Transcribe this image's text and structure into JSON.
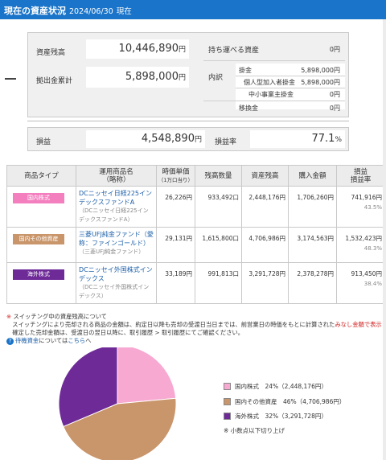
{
  "header": {
    "title": "現在の資産状況",
    "date": "2024/06/30",
    "now": "現在"
  },
  "summary": {
    "asset_label": "資産残高",
    "asset_value": "10,446,890",
    "yen": "円",
    "contrib_label": "拠出金累計",
    "contrib_value": "5,898,000",
    "portable_label": "持ち運べる資産",
    "portable_value": "0円",
    "breakdown_label": "内訳",
    "items": [
      {
        "label": "掛金",
        "value": "5,898,000円"
      },
      {
        "label": "個人型加入者掛金",
        "value": "5,898,000円"
      },
      {
        "label": "中小事業主掛金",
        "value": "0円"
      },
      {
        "label": "移換金",
        "value": "0円"
      }
    ]
  },
  "gain": {
    "label": "損益",
    "value": "4,548,890",
    "rate_label": "損益率",
    "rate_value": "77.1",
    "percent": "%"
  },
  "table": {
    "headers": [
      "商品タイプ",
      "運用商品名",
      "時価単価",
      "残高数量",
      "資産残高",
      "購入金額",
      "損益"
    ],
    "header_subs": [
      "",
      "（略称）",
      "（1万口当り）",
      "",
      "",
      "",
      "損益率"
    ],
    "rows": [
      {
        "type": "国内株式",
        "type_color": "#f47fbf",
        "name": "DCニッセイ日経225インデックスファンドA",
        "abbr": "（DCニッセイ日経225インデックスファンドA）",
        "price": "26,226円",
        "qty": "933,492口",
        "balance": "2,448,176円",
        "purchase": "1,706,260円",
        "pl": "741,916円",
        "rate": "43.5%"
      },
      {
        "type": "国内その他資産",
        "type_color": "#c9956a",
        "name": "三菱UFJ純金ファンド（愛称：ファインゴールド）",
        "abbr": "（三菱UFJ純金ファンド）",
        "price": "29,131円",
        "qty": "1,615,800口",
        "balance": "4,706,986円",
        "purchase": "3,174,563円",
        "pl": "1,532,423円",
        "rate": "48.3%"
      },
      {
        "type": "海外株式",
        "type_color": "#6e2a97",
        "name": "DCニッセイ外国株式インデックス",
        "abbr": "（DCニッセイ外国株式インデックス）",
        "price": "33,189円",
        "qty": "991,813口",
        "balance": "3,291,728円",
        "purchase": "2,378,278円",
        "pl": "913,450円",
        "rate": "38.4%"
      }
    ]
  },
  "notes": {
    "line1_mark": "※",
    "line1": "スイッチング中の資産残高について",
    "line2a": "スイッチングにより売却される商品の金額は、約定日以降も売却の受渡日当日までは、前営業日の時価をもとに計算された",
    "line2_red": "みなし金額で表示されます。",
    "line3": "確定した売却金額は、受渡日の翌日以降に、取引履歴 > 取引履歴にてご確認ください。",
    "line4_mark": "?",
    "line4a": "待機資金",
    "line4b": "については",
    "line4_link": "こちら",
    "line4c": "へ"
  },
  "chart_data": {
    "type": "pie",
    "series": [
      {
        "name": "国内株式",
        "percent": 24,
        "amount": "2,448,176円",
        "color": "#f7a9d2"
      },
      {
        "name": "国内その他資産",
        "percent": 46,
        "amount": "4,706,986円",
        "color": "#c9956a"
      },
      {
        "name": "海外株式",
        "percent": 32,
        "amount": "3,291,728円",
        "color": "#6e2a97"
      }
    ],
    "legend": [
      "国内株式　24%（2,448,176円）",
      "国内その他資産　46%（4,706,986円）",
      "海外株式　32%（3,291,728円）"
    ],
    "footnote": "※ 小数点以下切り上げ",
    "legend_position": "right"
  }
}
